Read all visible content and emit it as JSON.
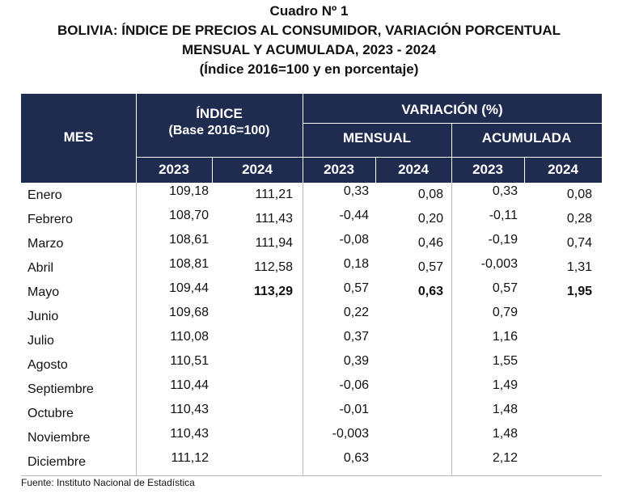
{
  "title": {
    "line1": "Cuadro Nº 1",
    "line2": "BOLIVIA: ÍNDICE DE PRECIOS AL CONSUMIDOR, VARIACIÓN PORCENTUAL",
    "line3": "MENSUAL Y ACUMULADA, 2023 - 2024",
    "line4": "(Índice 2016=100 y en porcentaje)"
  },
  "header": {
    "mes": "MES",
    "indice": "ÍNDICE",
    "indice_base": "(Base 2016=100)",
    "variacion": "VARIACIÓN (%)",
    "mensual": "MENSUAL",
    "acumulada": "ACUMULADA",
    "years": [
      "2023",
      "2024",
      "2023",
      "2024",
      "2023",
      "2024"
    ]
  },
  "rows": [
    {
      "mes": "Enero",
      "i2023": "109,18",
      "i2024": "111,21",
      "m2023": "0,33",
      "m2024": "0,08",
      "a2023": "0,33",
      "a2024": "0,08"
    },
    {
      "mes": "Febrero",
      "i2023": "108,70",
      "i2024": "111,43",
      "m2023": "-0,44",
      "m2024": "0,20",
      "a2023": "-0,11",
      "a2024": "0,28"
    },
    {
      "mes": "Marzo",
      "i2023": "108,61",
      "i2024": "111,94",
      "m2023": "-0,08",
      "m2024": "0,46",
      "a2023": "-0,19",
      "a2024": "0,74"
    },
    {
      "mes": "Abril",
      "i2023": "108,81",
      "i2024": "112,58",
      "m2023": "0,18",
      "m2024": "0,57",
      "a2023": "-0,003",
      "a2024": "1,31"
    },
    {
      "mes": "Mayo",
      "i2023": "109,44",
      "i2024": "113,29",
      "m2023": "0,57",
      "m2024": "0,63",
      "a2023": "0,57",
      "a2024": "1,95"
    },
    {
      "mes": "Junio",
      "i2023": "109,68",
      "i2024": "",
      "m2023": "0,22",
      "m2024": "",
      "a2023": "0,79",
      "a2024": ""
    },
    {
      "mes": "Julio",
      "i2023": "110,08",
      "i2024": "",
      "m2023": "0,37",
      "m2024": "",
      "a2023": "1,16",
      "a2024": ""
    },
    {
      "mes": "Agosto",
      "i2023": "110,51",
      "i2024": "",
      "m2023": "0,39",
      "m2024": "",
      "a2023": "1,55",
      "a2024": ""
    },
    {
      "mes": "Septiembre",
      "i2023": "110,44",
      "i2024": "",
      "m2023": "-0,06",
      "m2024": "",
      "a2023": "1,49",
      "a2024": ""
    },
    {
      "mes": "Octubre",
      "i2023": "110,43",
      "i2024": "",
      "m2023": "-0,01",
      "m2024": "",
      "a2023": "1,48",
      "a2024": ""
    },
    {
      "mes": "Noviembre",
      "i2023": "110,43",
      "i2024": "",
      "m2023": "-0,003",
      "m2024": "",
      "a2023": "1,48",
      "a2024": ""
    },
    {
      "mes": "Diciembre",
      "i2023": "111,12",
      "i2024": "",
      "m2023": "0,63",
      "m2024": "",
      "a2023": "2,12",
      "a2024": ""
    }
  ],
  "source": "Fuente: Instituto Nacional de Estadística"
}
